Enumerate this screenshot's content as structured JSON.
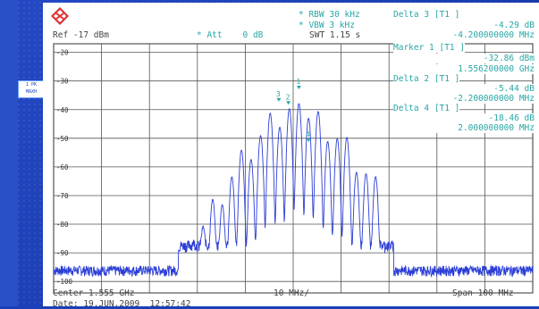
{
  "badge": {
    "line1": "1 PK",
    "line2": "MAXH"
  },
  "header": {
    "rbw_label": "RBW",
    "rbw_value": "30 kHz",
    "vbw_label": "VBW",
    "vbw_value": "3 kHz",
    "swt_label": "SWT",
    "swt_value": "1.15 s",
    "ref_label": "Ref",
    "ref_value": "-17 dBm",
    "att_label": "Att",
    "att_value": "0 dB"
  },
  "markers": [
    {
      "title": "Delta 3 [T1 ]",
      "value1": "-4.29 dB",
      "value2": "-4.200000000 MHz"
    },
    {
      "title": "Marker 1 [T1 ]",
      "value1": "-32.86 dBm",
      "value2": "1.556200000 GHz"
    },
    {
      "title": "Delta 2 [T1 ]",
      "value1": "-5.44 dB",
      "value2": "-2.200000000 MHz"
    },
    {
      "title": "Delta 4 [T1 ]",
      "value1": "-18.46 dB",
      "value2": "2.000000000 MHz"
    }
  ],
  "footer": {
    "center": "Center 1.555 GHz",
    "div": "10 MHz/",
    "span": "Span 100 MHz",
    "date": "Date: 19.JUN.2009  12:57:42"
  },
  "colors": {
    "trace": "#2b3ed6",
    "grid": "#555555",
    "marker": "#2aa6a6",
    "logo": "#e03030"
  },
  "chart_data": {
    "type": "line",
    "xlabel": "",
    "ylabel": "",
    "y_ticks": [
      "-20",
      "-30",
      "-40",
      "-50",
      "-60",
      "-70",
      "-80",
      "-90",
      "-100"
    ],
    "ylim": [
      -104,
      -17
    ],
    "xlim_mhz": [
      1505,
      1605
    ],
    "grid": true,
    "noise_floor_dbm": -96,
    "comb": {
      "spacing_mhz": 2.0,
      "center_mhz": 1556.2,
      "start_mhz": 1534,
      "end_mhz": 1574,
      "peak_dbm": -32.9
    },
    "marker_points": [
      {
        "label": "1",
        "x_mhz": 1556.2,
        "y_dbm": -32.9
      },
      {
        "label": "2",
        "x_mhz": 1554.0,
        "y_dbm": -38.3
      },
      {
        "label": "3",
        "x_mhz": 1552.0,
        "y_dbm": -37.2
      },
      {
        "label": "4",
        "x_mhz": 1558.2,
        "y_dbm": -51.3
      }
    ]
  }
}
